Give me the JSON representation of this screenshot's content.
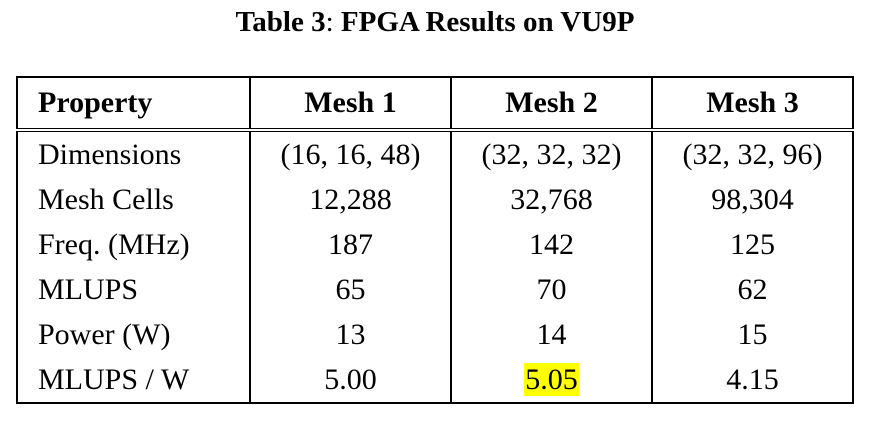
{
  "caption": {
    "label": "Table 3",
    "separator": ": ",
    "title": "FPGA Results on VU9P"
  },
  "table": {
    "headers": [
      "Property",
      "Mesh 1",
      "Mesh 2",
      "Mesh 3"
    ],
    "rows": [
      {
        "property": "Dimensions",
        "values": [
          "(16, 16, 48)",
          "(32, 32, 32)",
          "(32, 32, 96)"
        ]
      },
      {
        "property": "Mesh Cells",
        "values": [
          "12,288",
          "32,768",
          "98,304"
        ]
      },
      {
        "property": "Freq. (MHz)",
        "values": [
          "187",
          "142",
          "125"
        ]
      },
      {
        "property": "MLUPS",
        "values": [
          "65",
          "70",
          "62"
        ]
      },
      {
        "property": "Power (W)",
        "values": [
          "13",
          "14",
          "15"
        ]
      },
      {
        "property": "MLUPS / W",
        "values": [
          "5.00",
          "5.05",
          "4.15"
        ]
      }
    ],
    "highlighted_cell": {
      "row": 5,
      "col": 1,
      "color": "#ffff00"
    }
  }
}
